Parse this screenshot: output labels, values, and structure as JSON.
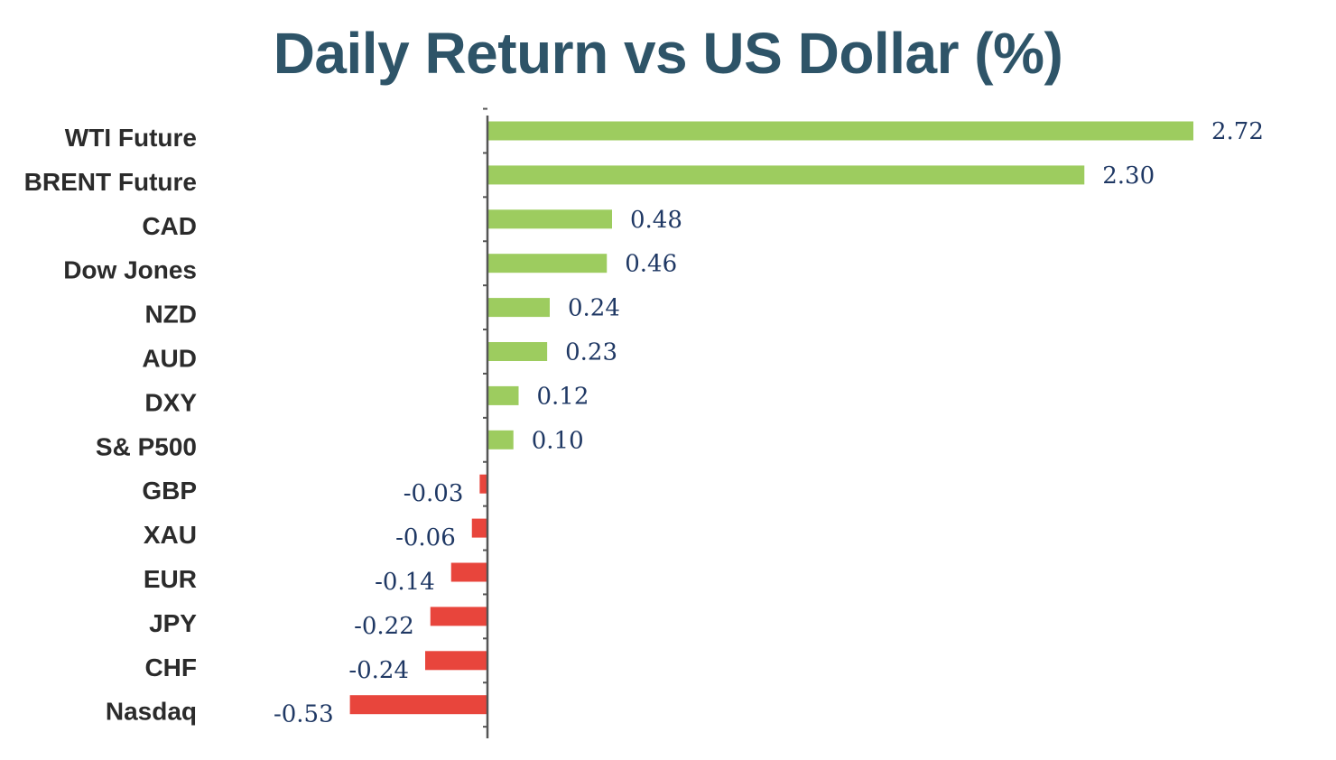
{
  "title": "Daily Return vs US Dollar (%)",
  "colors": {
    "positive": "#9dcc5f",
    "negative": "#e8453c",
    "title": "#2e5468",
    "axis": "#555555",
    "value_label": "#1f3864"
  },
  "chart_data": {
    "type": "bar",
    "orientation": "horizontal",
    "title": "Daily Return vs US Dollar (%)",
    "xlabel": "",
    "ylabel": "",
    "grid": false,
    "legend": "none",
    "xlim": [
      -0.6,
      2.8
    ],
    "categories": [
      "WTI Future",
      "BRENT Future",
      "CAD",
      "Dow Jones",
      "NZD",
      "AUD",
      "DXY",
      "S& P500",
      "GBP",
      "XAU",
      "EUR",
      "JPY",
      "CHF",
      "Nasdaq"
    ],
    "values": [
      2.72,
      2.3,
      0.48,
      0.46,
      0.24,
      0.23,
      0.12,
      0.1,
      -0.03,
      -0.06,
      -0.14,
      -0.22,
      -0.24,
      -0.53
    ],
    "value_labels": [
      "2.72",
      "2.30",
      "0.48",
      "0.46",
      "0.24",
      "0.23",
      "0.12",
      "0.10",
      "-0.03",
      "-0.06",
      "-0.14",
      "-0.22",
      "-0.24",
      "-0.53"
    ]
  }
}
